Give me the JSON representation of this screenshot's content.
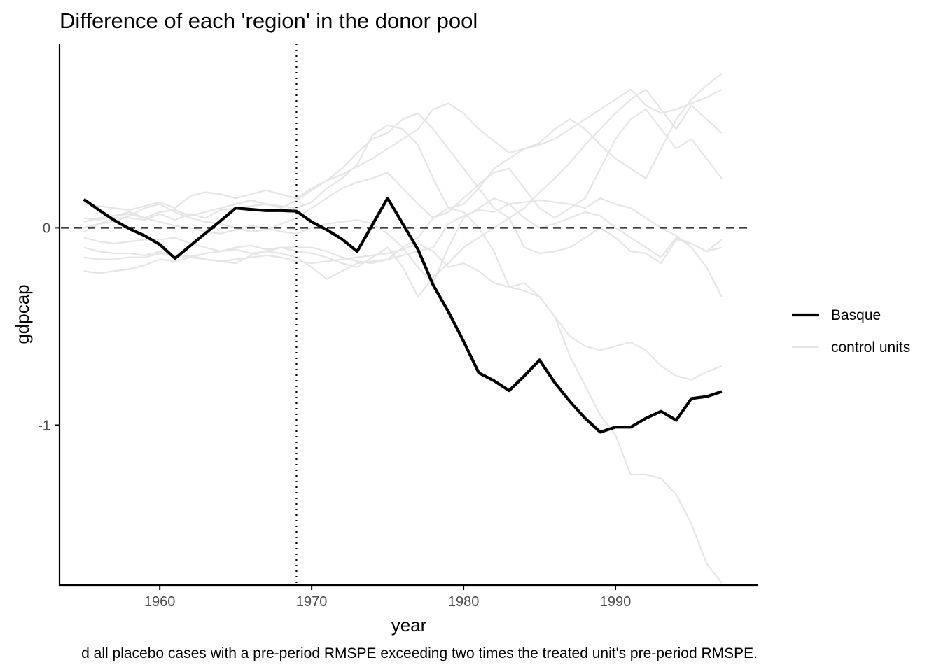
{
  "chart_data": {
    "type": "line",
    "title": "Difference of each 'region' in the donor pool",
    "xlabel": "year",
    "ylabel": "gdpcap",
    "caption": "d all placebo cases with a pre-period RMSPE exceeding two times the treated unit's pre-period RMSPE.",
    "xlim": [
      1953.4,
      1999.4
    ],
    "ylim": [
      -1.81,
      0.93
    ],
    "x_ticks": [
      1960,
      1970,
      1980,
      1990
    ],
    "y_ticks": [
      0,
      -1
    ],
    "x_tick_labels": [
      "1960",
      "1970",
      "1980",
      "1990"
    ],
    "y_tick_labels": [
      "0",
      "-1"
    ],
    "treatment_year": 1969,
    "reference_y": 0,
    "grid": false,
    "legend_position": "right",
    "legend": [
      {
        "label": "Basque",
        "color": "#000000",
        "style": "thick"
      },
      {
        "label": "control units",
        "color": "#e5e5e5",
        "style": "thin"
      }
    ],
    "x": [
      1955,
      1956,
      1957,
      1958,
      1959,
      1960,
      1961,
      1962,
      1963,
      1964,
      1965,
      1966,
      1967,
      1968,
      1969,
      1970,
      1971,
      1972,
      1973,
      1974,
      1975,
      1976,
      1977,
      1978,
      1979,
      1980,
      1981,
      1982,
      1983,
      1984,
      1985,
      1986,
      1987,
      1988,
      1989,
      1990,
      1991,
      1992,
      1993,
      1994,
      1995,
      1996,
      1997
    ],
    "treated": {
      "name": "Basque",
      "values": [
        0.144,
        0.09,
        0.038,
        -0.005,
        -0.04,
        -0.085,
        -0.155,
        -0.092,
        -0.028,
        0.035,
        0.1,
        0.093,
        0.087,
        0.087,
        0.084,
        0.03,
        -0.01,
        -0.058,
        -0.12,
        0.015,
        0.15,
        0.02,
        -0.11,
        -0.29,
        -0.425,
        -0.575,
        -0.735,
        -0.775,
        -0.825,
        -0.75,
        -0.67,
        -0.785,
        -0.88,
        -0.965,
        -1.035,
        -1.01,
        -1.01,
        -0.965,
        -0.93,
        -0.975,
        -0.865,
        -0.855,
        -0.83
      ]
    },
    "controls": [
      {
        "values": [
          0.12,
          0.11,
          0.1,
          0.09,
          0.11,
          0.13,
          0.1,
          0.16,
          0.18,
          0.17,
          0.15,
          0.17,
          0.19,
          0.17,
          0.15,
          0.2,
          0.24,
          0.27,
          0.31,
          0.35,
          0.4,
          0.45,
          0.5,
          0.6,
          0.63,
          0.58,
          0.5,
          0.44,
          0.38,
          0.4,
          0.42,
          0.45,
          0.5,
          0.55,
          0.6,
          0.65,
          0.7,
          0.62,
          0.58,
          0.6,
          0.63,
          0.66,
          0.7
        ]
      },
      {
        "values": [
          0.03,
          0.05,
          0.06,
          0.07,
          0.05,
          0.08,
          0.09,
          0.06,
          0.08,
          0.1,
          0.12,
          0.14,
          0.12,
          0.1,
          0.14,
          0.19,
          0.24,
          0.3,
          0.38,
          0.45,
          0.48,
          0.55,
          0.58,
          0.5,
          0.4,
          0.3,
          0.2,
          0.1,
          0.05,
          0.1,
          0.18,
          0.25,
          0.33,
          0.42,
          0.5,
          0.58,
          0.65,
          0.7,
          0.6,
          0.5,
          0.62,
          0.55,
          0.48
        ]
      },
      {
        "values": [
          -0.02,
          0.02,
          0.05,
          0.05,
          0.04,
          0.07,
          0.04,
          0.07,
          0.05,
          0.09,
          0.1,
          0.11,
          0.12,
          0.11,
          0.1,
          0.13,
          0.2,
          0.25,
          0.32,
          0.47,
          0.52,
          0.5,
          0.42,
          0.25,
          0.1,
          0.12,
          0.2,
          0.3,
          0.35,
          0.4,
          0.43,
          0.5,
          0.55,
          0.5,
          0.42,
          0.35,
          0.3,
          0.25,
          0.4,
          0.55,
          0.65,
          0.72,
          0.78
        ]
      },
      {
        "values": [
          0.0,
          0.02,
          0.03,
          0.06,
          0.1,
          0.12,
          0.08,
          0.05,
          0.03,
          0.02,
          0.0,
          -0.02,
          -0.01,
          0.02,
          0.05,
          0.1,
          0.15,
          0.2,
          0.23,
          0.25,
          0.28,
          0.2,
          0.12,
          0.05,
          0.08,
          0.15,
          0.22,
          0.28,
          0.3,
          0.2,
          0.1,
          0.05,
          0.1,
          0.15,
          0.3,
          0.45,
          0.55,
          0.6,
          0.5,
          0.4,
          0.45,
          0.35,
          0.25
        ]
      },
      {
        "values": [
          0.05,
          0.04,
          0.06,
          0.08,
          0.05,
          0.03,
          0.01,
          0.0,
          -0.02,
          -0.03,
          -0.01,
          0.01,
          0.0,
          -0.02,
          -0.03,
          0.0,
          0.02,
          0.03,
          0.04,
          0.02,
          -0.03,
          -0.1,
          -0.2,
          -0.28,
          -0.1,
          0.05,
          0.1,
          0.15,
          0.12,
          0.05,
          0.0,
          0.02,
          0.05,
          0.08,
          0.06,
          0.0,
          -0.05,
          -0.1,
          -0.15,
          -0.05,
          -0.08,
          -0.12,
          -0.06
        ]
      },
      {
        "values": [
          -0.05,
          -0.07,
          -0.08,
          -0.07,
          -0.06,
          -0.06,
          -0.05,
          -0.08,
          -0.1,
          -0.12,
          -0.1,
          -0.09,
          -0.11,
          -0.1,
          -0.12,
          -0.13,
          -0.15,
          -0.18,
          -0.2,
          -0.15,
          -0.1,
          -0.2,
          -0.35,
          -0.25,
          -0.18,
          -0.1,
          -0.05,
          0.0,
          0.05,
          -0.1,
          -0.13,
          -0.12,
          -0.1,
          -0.05,
          0.0,
          -0.05,
          -0.12,
          -0.13,
          -0.18,
          -0.06,
          -0.08,
          -0.12,
          -0.1
        ]
      },
      {
        "values": [
          -0.1,
          -0.12,
          -0.13,
          -0.13,
          -0.14,
          -0.12,
          -0.15,
          -0.14,
          -0.16,
          -0.17,
          -0.18,
          -0.14,
          -0.12,
          -0.13,
          -0.15,
          -0.2,
          -0.26,
          -0.22,
          -0.18,
          -0.17,
          -0.16,
          -0.14,
          -0.12,
          -0.1,
          0.02,
          0.06,
          0.09,
          0.08,
          0.12,
          0.13,
          0.14,
          0.13,
          0.12,
          0.1,
          0.15,
          0.12,
          0.1,
          0.05,
          0.0,
          -0.04,
          -0.1,
          -0.2,
          -0.35
        ]
      },
      {
        "values": [
          -0.15,
          -0.16,
          -0.16,
          -0.15,
          -0.15,
          -0.13,
          -0.14,
          -0.15,
          -0.16,
          -0.17,
          -0.16,
          -0.15,
          -0.14,
          -0.15,
          -0.17,
          -0.18,
          -0.17,
          -0.16,
          -0.15,
          -0.14,
          -0.13,
          -0.11,
          -0.08,
          -0.12,
          -0.2,
          -0.18,
          -0.22,
          -0.28,
          -0.3,
          -0.32,
          -0.35,
          -0.45,
          -0.55,
          -0.6,
          -0.62,
          -0.6,
          -0.58,
          -0.62,
          -0.7,
          -0.75,
          -0.77,
          -0.73,
          -0.7
        ]
      },
      {
        "values": [
          -0.22,
          -0.23,
          -0.22,
          -0.21,
          -0.19,
          -0.16,
          -0.17,
          -0.15,
          -0.13,
          -0.12,
          -0.11,
          -0.13,
          -0.12,
          -0.1,
          -0.1,
          -0.1,
          -0.12,
          -0.15,
          -0.17,
          -0.18,
          -0.16,
          -0.1,
          -0.05,
          0.05,
          0.1,
          0.08,
          0.0,
          -0.12,
          -0.3,
          -0.28,
          -0.35,
          -0.45,
          -0.65,
          -0.8,
          -0.95,
          -1.05,
          -1.25,
          -1.25,
          -1.27,
          -1.35,
          -1.5,
          -1.7,
          -1.8
        ]
      }
    ]
  }
}
